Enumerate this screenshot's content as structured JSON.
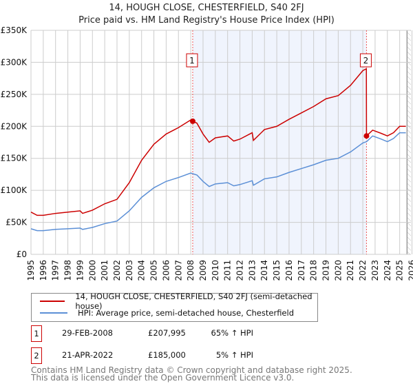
{
  "title": "14, HOUGH CLOSE, CHESTERFIELD, S40 2FJ",
  "subtitle": "Price paid vs. HM Land Registry's House Price Index (HPI)",
  "chart_data": {
    "type": "line",
    "title": "14, HOUGH CLOSE, CHESTERFIELD, S40 2FJ",
    "subtitle": "Price paid vs. HM Land Registry's House Price Index (HPI)",
    "xlim": [
      1995,
      2026
    ],
    "ylim": [
      0,
      350000
    ],
    "grid": true,
    "ytick_labels": [
      "£0",
      "£50K",
      "£100K",
      "£150K",
      "£200K",
      "£250K",
      "£300K",
      "£350K"
    ],
    "ytick_values": [
      0,
      50000,
      100000,
      150000,
      200000,
      250000,
      300000,
      350000
    ],
    "xtick_labels": [
      "1995",
      "1996",
      "1997",
      "1998",
      "1999",
      "2000",
      "2001",
      "2002",
      "2003",
      "2004",
      "2005",
      "2006",
      "2007",
      "2008",
      "2009",
      "2010",
      "2011",
      "2012",
      "2013",
      "2014",
      "2015",
      "2016",
      "2017",
      "2018",
      "2019",
      "2020",
      "2021",
      "2022",
      "2023",
      "2024",
      "2025",
      "2026"
    ],
    "x": [
      1995,
      1995.5,
      1996,
      1997,
      1998,
      1999,
      1999.2,
      2000,
      2001,
      2002,
      2003,
      2004,
      2005,
      2006,
      2007,
      2008,
      2008.16,
      2008.5,
      2009,
      2009.5,
      2010,
      2011,
      2011.5,
      2012,
      2013,
      2013.1,
      2014,
      2015,
      2016,
      2017,
      2018,
      2019,
      2020,
      2021,
      2022,
      2022.29,
      2022.3,
      2022.8,
      2023.5,
      2024,
      2024.5,
      2025,
      2025.5
    ],
    "series": [
      {
        "name": "14, HOUGH CLOSE, CHESTERFIELD, S40 2FJ (semi-detached house)",
        "color": "#cc0000",
        "values": [
          66000,
          61000,
          61000,
          64000,
          66000,
          68000,
          64000,
          69000,
          79000,
          86000,
          112000,
          147000,
          172000,
          188000,
          198000,
          210000,
          207995,
          205000,
          188000,
          175000,
          182000,
          185000,
          177000,
          180000,
          190000,
          178000,
          195000,
          200000,
          211000,
          221000,
          231000,
          243000,
          248000,
          264000,
          287000,
          290000,
          185000,
          194000,
          189000,
          185000,
          190000,
          200000,
          200000
        ]
      },
      {
        "name": "HPI: Average price, semi-detached house, Chesterfield",
        "color": "#5b8fd6",
        "values": [
          40000,
          37000,
          37000,
          39000,
          40000,
          41000,
          39000,
          42000,
          48000,
          52000,
          68000,
          89000,
          104000,
          114000,
          120000,
          127000,
          126000,
          124000,
          114000,
          106000,
          110000,
          112000,
          107000,
          109000,
          115000,
          108000,
          118000,
          121000,
          128000,
          134000,
          140000,
          147000,
          150000,
          160000,
          174000,
          176000,
          176000,
          185000,
          180000,
          176000,
          181000,
          190000,
          190000
        ]
      }
    ],
    "annotations": [
      {
        "label": "1",
        "x": 2008.16,
        "y": 207995
      },
      {
        "label": "2",
        "x": 2022.3,
        "y": 185000
      }
    ],
    "shaded_range": [
      2008.16,
      2022.3
    ],
    "hatched_from": 2025.6,
    "legend_placement": "bottom"
  },
  "legend": {
    "red": "14, HOUGH CLOSE, CHESTERFIELD, S40 2FJ (semi-detached house)",
    "blue": "HPI: Average price, semi-detached house, Chesterfield"
  },
  "transactions": [
    {
      "num": "1",
      "date": "29-FEB-2008",
      "price": "£207,995",
      "hpi": "65% ↑ HPI"
    },
    {
      "num": "2",
      "date": "21-APR-2022",
      "price": "£185,000",
      "hpi": "5% ↑ HPI"
    }
  ],
  "footer": [
    "Contains HM Land Registry data © Crown copyright and database right 2025.",
    "This data is licensed under the Open Government Licence v3.0."
  ]
}
